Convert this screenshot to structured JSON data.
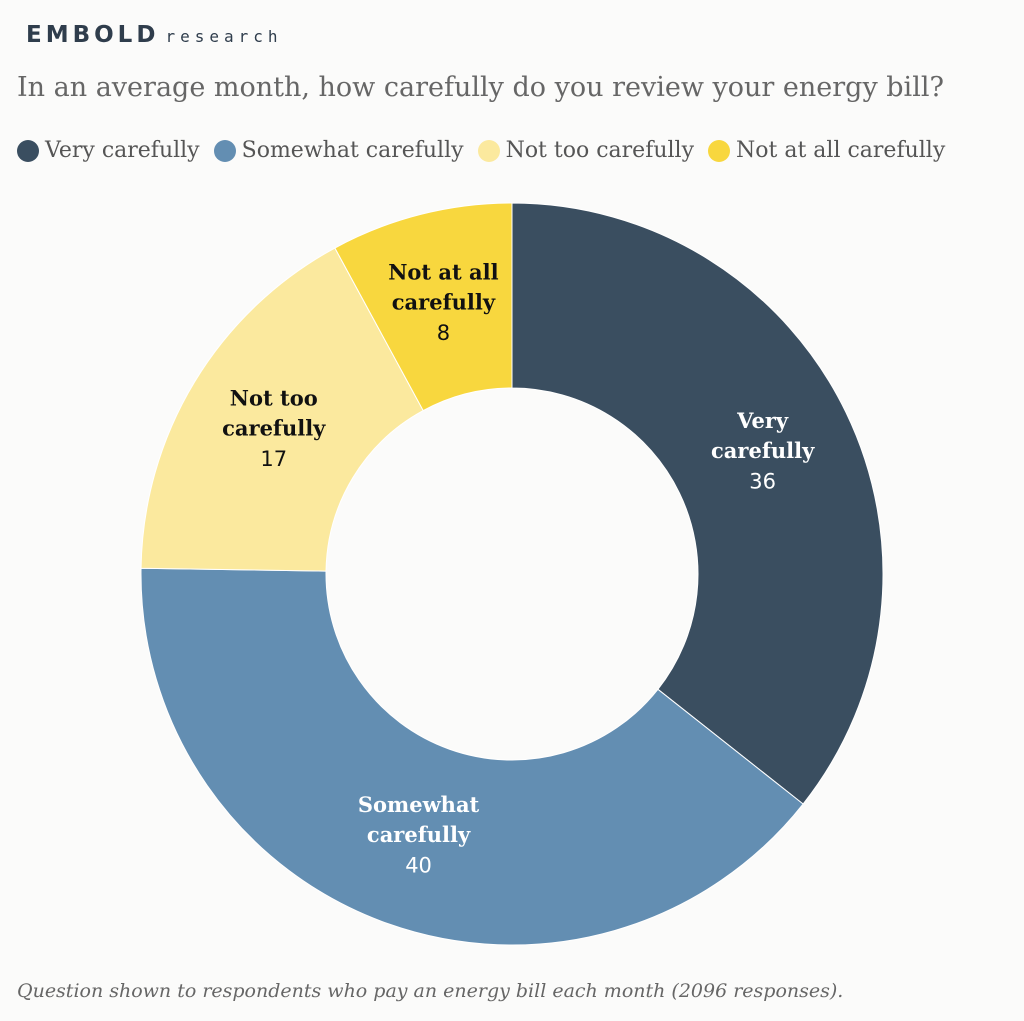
{
  "brand": {
    "main": "EMBOLD",
    "sub": "research"
  },
  "title": "In an average month, how carefully do you review your energy bill?",
  "note": "Question shown to respondents who pay an energy bill each month (2096 responses).",
  "chart_data": {
    "type": "pie",
    "donut": true,
    "title": "In an average month, how carefully do you review your energy bill?",
    "legend_position": "top",
    "categories": [
      "Very carefully",
      "Somewhat carefully",
      "Not too carefully",
      "Not at all carefully"
    ],
    "values": [
      36,
      40,
      17,
      8
    ],
    "label_lines": [
      [
        "Very",
        "carefully"
      ],
      [
        "Somewhat",
        "carefully"
      ],
      [
        "Not too",
        "carefully"
      ],
      [
        "Not at all",
        "carefully"
      ]
    ],
    "colors": [
      "#3a4e60",
      "#638eb2",
      "#fbe99e",
      "#f8d73e"
    ],
    "label_colors": [
      "#ffffff",
      "#ffffff",
      "#111111",
      "#111111"
    ]
  }
}
